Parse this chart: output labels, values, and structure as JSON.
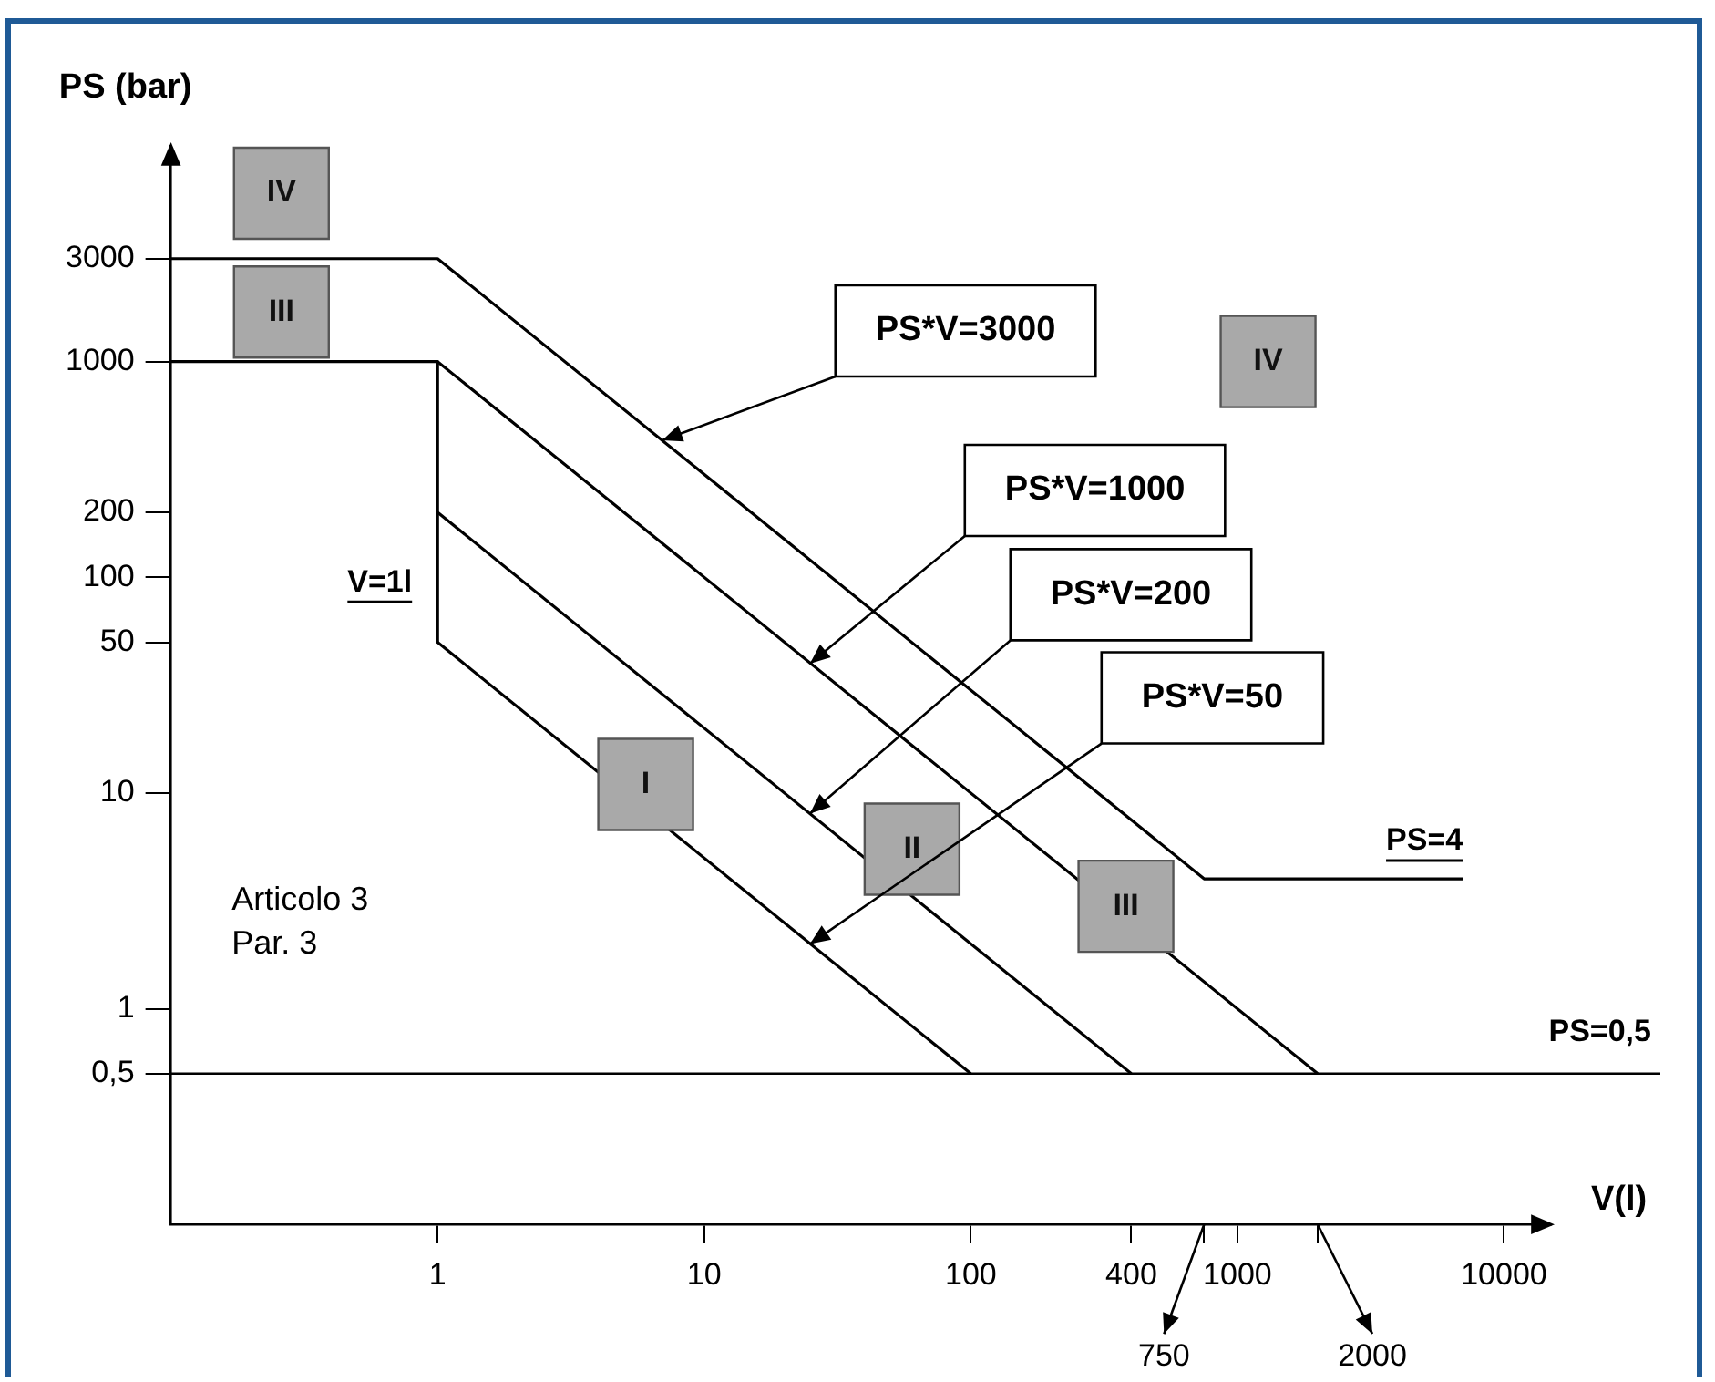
{
  "chart_data": {
    "type": "line",
    "xlabel": "V(l)",
    "ylabel": "PS (bar)",
    "log": "xy",
    "xlim": [
      0.1,
      15000
    ],
    "ylim": [
      0.1,
      10000
    ],
    "xticks": [
      1,
      10,
      100,
      400,
      {
        "value": 750,
        "label": null
      },
      1000,
      {
        "value": 2000,
        "label": null
      },
      10000
    ],
    "yticks": [
      {
        "value": 0.5,
        "label": "0,5"
      },
      1,
      10,
      50,
      100,
      200,
      1000,
      3000
    ],
    "marker": "none",
    "line_style": "solid",
    "grid": false,
    "legend": false,
    "series": [
      {
        "color": "#000000",
        "x": [
          0.1,
          1,
          750,
          7000
        ],
        "values": [
          3000,
          3000,
          4,
          4
        ]
      },
      {
        "color": "#000000",
        "x": [
          0.1,
          1,
          2000
        ],
        "values": [
          1000,
          1000,
          0.5
        ]
      },
      {
        "color": "#000000",
        "x": [
          1,
          400
        ],
        "values": [
          200,
          0.5
        ]
      },
      {
        "color": "#000000",
        "x": [
          1,
          100
        ],
        "values": [
          50,
          0.5
        ]
      },
      {
        "color": "#000000",
        "x": [
          1,
          1
        ],
        "values": [
          1000,
          50
        ]
      }
    ],
    "ref_lines": [
      {
        "axis": "y",
        "value": 0.5,
        "label": "PS=0,5",
        "color": "#000000"
      }
    ],
    "annotations": [
      "IV",
      "III",
      "IV",
      "I",
      "II",
      "III",
      "Articolo 3\nPar. 3",
      {
        "text": "V=1l",
        "x": 1,
        "y": 80
      },
      {
        "text": "PS=4",
        "x": 7000,
        "y": 4
      },
      "PS*V=3000",
      "PS*V=1000",
      "PS*V=200",
      "PS*V=50",
      "750",
      "2000"
    ]
  }
}
